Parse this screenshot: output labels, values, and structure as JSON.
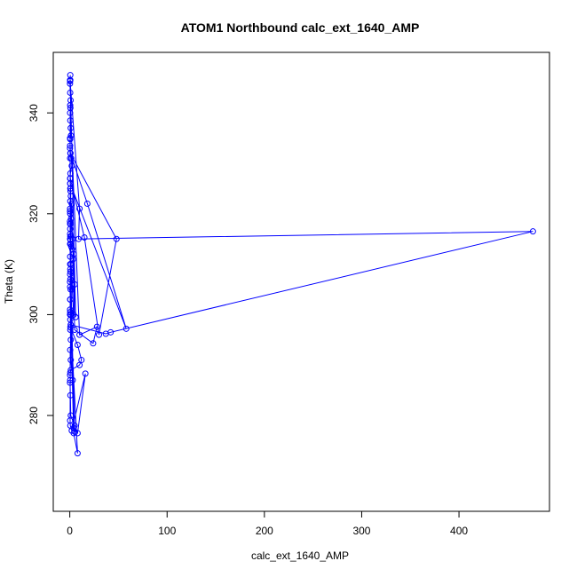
{
  "chart_data": {
    "type": "line",
    "title": "ATOM1 Northbound calc_ext_1640_AMP",
    "xlabel": "calc_ext_1640_AMP",
    "ylabel": "Theta (K)",
    "xlim": [
      -17,
      493
    ],
    "ylim": [
      261,
      352
    ],
    "xticks": [
      0,
      100,
      200,
      300,
      400
    ],
    "yticks": [
      280,
      300,
      320,
      340
    ],
    "grid": false,
    "color": "#0000ff",
    "marker": "open-circle",
    "series": [
      {
        "x": [
          0.5,
          0.3,
          0.2,
          0.4,
          0.8,
          0.6,
          0.3,
          0.5,
          0.9,
          1.2,
          0.4,
          0.3,
          0.7,
          1.5,
          2.0,
          0.6,
          0.3,
          0.4,
          0.8,
          1.0,
          0.5,
          0.3,
          0.6,
          1.2,
          0.8,
          0.4,
          0.3,
          0.5,
          0.7,
          1.0,
          2.5,
          4.0,
          3.5,
          1.0,
          0.5,
          0.3,
          0.6,
          5.0,
          0.8,
          0.4,
          0.3,
          0.2,
          0.5,
          1.0,
          0.6,
          8.0,
          12.0,
          10.0,
          1.0,
          0.5,
          0.3,
          0.4,
          0.2,
          0.6,
          1.0,
          5.0,
          4.0,
          8.0,
          16.0,
          2.0,
          0.5,
          0.3,
          0.4,
          1.0,
          0.5,
          0.3,
          0.2,
          0.6,
          0.4,
          1.5,
          3.0,
          5.0,
          24.0,
          28.0,
          10.0,
          0.4,
          0.3,
          0.2,
          0.5,
          15.0,
          30.0,
          48.0,
          0.6,
          18.0,
          58.0,
          0.4,
          0.3,
          0.7,
          6.0,
          0.5,
          0.3,
          10.0,
          9.0,
          476.0,
          42.0,
          37.0,
          1.0,
          0.6,
          0.4,
          1.2,
          2.0,
          0.5,
          0.3,
          4.0,
          2.5,
          0.4,
          5.0,
          1.0,
          0.3,
          0.2,
          3.0,
          1.0,
          0.4,
          0.3,
          0.2,
          0.5,
          1.0,
          0.4,
          4.0,
          8.0,
          0.5
        ],
        "y": [
          347.5,
          346.5,
          345.8,
          344.0,
          342.5,
          341.0,
          340.0,
          338.5,
          337.0,
          335.5,
          334.8,
          333.5,
          332.0,
          331.0,
          329.5,
          328.0,
          327.0,
          326.0,
          325.0,
          323.5,
          322.5,
          321.0,
          320.0,
          319.0,
          318.0,
          317.0,
          316.0,
          315.5,
          314.8,
          314.0,
          313.0,
          312.0,
          311.0,
          310.0,
          309.0,
          308.0,
          307.0,
          306.0,
          305.0,
          303.0,
          301.0,
          300.0,
          299.0,
          298.0,
          297.5,
          294.0,
          291.0,
          290.0,
          289.0,
          288.5,
          288.0,
          287.0,
          286.5,
          284.0,
          280.0,
          278.0,
          277.5,
          276.5,
          288.3,
          277.0,
          278.0,
          279.0,
          293.0,
          295.0,
          297.0,
          305.5,
          306.5,
          308.5,
          311.5,
          313.5,
          315.0,
          297.0,
          294.3,
          297.6,
          296.0,
          341.5,
          335.0,
          333.0,
          327.0,
          315.3,
          296.0,
          315.0,
          332.0,
          322.0,
          297.2,
          326.0,
          331.0,
          324.5,
          299.5,
          346.5,
          346.3,
          321.0,
          315.0,
          316.5,
          296.5,
          296.2,
          298.0,
          310.0,
          320.0,
          315.5,
          322.0,
          318.0,
          314.0,
          300.0,
          305.0,
          310.0,
          276.8,
          300.0,
          318.0,
          320.5,
          287.0,
          291.0,
          300.5,
          315.0,
          318.5,
          325.0,
          310.0,
          303.0,
          276.5,
          272.5,
          300.0
        ]
      }
    ]
  }
}
